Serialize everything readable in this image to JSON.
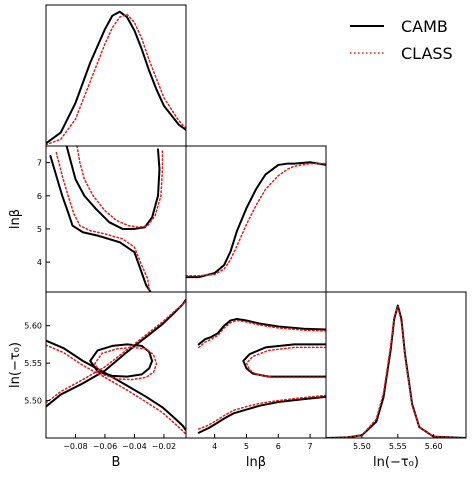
{
  "chart_data": {
    "type": "line",
    "colors": {
      "CAMB": "#000000",
      "CLASS": "#e31a1c"
    },
    "legend": {
      "placement": "top-right",
      "entries": [
        {
          "label": "CAMB",
          "color": "#000000",
          "style": "solid"
        },
        {
          "label": "CLASS",
          "color": "#e31a1c",
          "style": "dotted"
        }
      ]
    },
    "axis_labels": {
      "B": "B",
      "lnbeta": "lnβ",
      "lntau": "ln(−τ₀)"
    },
    "ranges": {
      "B": [
        -0.1,
        -0.005
      ],
      "lnbeta": [
        3.1,
        7.5
      ],
      "lntau": [
        5.45,
        5.645
      ]
    },
    "ticks": {
      "B": [
        {
          "v": -0.08,
          "label": "−0.08"
        },
        {
          "v": -0.06,
          "label": "−0.06"
        },
        {
          "v": -0.04,
          "label": "−0.04"
        },
        {
          "v": -0.02,
          "label": "−0.02"
        }
      ],
      "lnbeta": [
        {
          "v": 4,
          "label": "4"
        },
        {
          "v": 5,
          "label": "5"
        },
        {
          "v": 6,
          "label": "6"
        },
        {
          "v": 7,
          "label": "7"
        }
      ],
      "lnbeta_left": [
        {
          "v": 4,
          "label": "4"
        },
        {
          "v": 5,
          "label": "5"
        },
        {
          "v": 6,
          "label": "6"
        },
        {
          "v": 7,
          "label": "7"
        }
      ],
      "lntau": [
        {
          "v": 5.5,
          "label": "5.50"
        },
        {
          "v": 5.55,
          "label": "5.55"
        },
        {
          "v": 5.6,
          "label": "5.60"
        }
      ],
      "lntau_left": [
        {
          "v": 5.5,
          "label": "5.50"
        },
        {
          "v": 5.55,
          "label": "5.55"
        },
        {
          "v": 5.6,
          "label": "5.60"
        }
      ]
    },
    "panels": {
      "B_marginal": {
        "series": [
          {
            "name": "CAMB",
            "x": [
              -0.1,
              -0.09,
              -0.08,
              -0.07,
              -0.06,
              -0.055,
              -0.05,
              -0.045,
              -0.04,
              -0.035,
              -0.03,
              -0.025,
              -0.02,
              -0.01,
              -0.005
            ],
            "y": [
              0.02,
              0.1,
              0.32,
              0.62,
              0.87,
              0.97,
              1.0,
              0.96,
              0.86,
              0.72,
              0.56,
              0.42,
              0.3,
              0.16,
              0.12
            ]
          },
          {
            "name": "CLASS",
            "x": [
              -0.1,
              -0.09,
              -0.08,
              -0.07,
              -0.06,
              -0.055,
              -0.05,
              -0.045,
              -0.04,
              -0.035,
              -0.03,
              -0.025,
              -0.02,
              -0.01,
              -0.005
            ],
            "y": [
              0.01,
              0.05,
              0.2,
              0.48,
              0.76,
              0.88,
              0.96,
              0.98,
              0.92,
              0.8,
              0.64,
              0.5,
              0.36,
              0.19,
              0.13
            ]
          }
        ]
      },
      "lnbeta_marginal": {
        "series": [
          {
            "name": "CAMB",
            "x": [
              3.1,
              3.5,
              4.0,
              4.3,
              4.5,
              4.7,
              5.0,
              5.3,
              5.6,
              6.0,
              6.3,
              6.5,
              7.0,
              7.5
            ],
            "y": [
              0.11,
              0.11,
              0.14,
              0.2,
              0.3,
              0.45,
              0.62,
              0.76,
              0.87,
              0.94,
              0.95,
              0.95,
              0.96,
              0.94
            ]
          },
          {
            "name": "CLASS",
            "x": [
              3.1,
              3.5,
              4.0,
              4.3,
              4.5,
              4.7,
              5.0,
              5.3,
              5.6,
              6.0,
              6.3,
              6.5,
              7.0,
              7.5
            ],
            "y": [
              0.12,
              0.12,
              0.13,
              0.17,
              0.24,
              0.34,
              0.5,
              0.64,
              0.76,
              0.86,
              0.91,
              0.93,
              0.95,
              0.95
            ]
          }
        ]
      },
      "lntau_marginal": {
        "series": [
          {
            "name": "CAMB",
            "x": [
              5.45,
              5.48,
              5.5,
              5.52,
              5.53,
              5.54,
              5.545,
              5.55,
              5.555,
              5.56,
              5.57,
              5.58,
              5.6,
              5.645
            ],
            "y": [
              0.0,
              0.005,
              0.02,
              0.12,
              0.3,
              0.65,
              0.88,
              0.98,
              0.88,
              0.62,
              0.25,
              0.08,
              0.01,
              0.0
            ]
          },
          {
            "name": "CLASS",
            "x": [
              5.45,
              5.48,
              5.5,
              5.52,
              5.53,
              5.54,
              5.545,
              5.55,
              5.555,
              5.56,
              5.57,
              5.58,
              5.6,
              5.645
            ],
            "y": [
              0.0,
              0.005,
              0.02,
              0.14,
              0.33,
              0.68,
              0.9,
              0.97,
              0.86,
              0.6,
              0.24,
              0.08,
              0.01,
              0.0
            ]
          }
        ]
      },
      "B_lnbeta_contours": {
        "series": [
          {
            "name": "CAMB",
            "x": [
              -0.097,
              -0.093,
              -0.089,
              -0.085,
              -0.082,
              -0.075,
              -0.065,
              -0.05,
              -0.04,
              -0.036,
              -0.032,
              -0.029,
              -0.028
            ],
            "y": [
              7.2,
              6.6,
              6.0,
              5.5,
              5.1,
              4.9,
              4.8,
              4.6,
              4.3,
              3.8,
              3.3,
              3.1,
              3.05
            ]
          },
          {
            "name": "CAMB",
            "x": [
              -0.086,
              -0.083,
              -0.08,
              -0.074,
              -0.066,
              -0.057,
              -0.048,
              -0.04,
              -0.033,
              -0.028,
              -0.024,
              -0.023,
              -0.024
            ],
            "y": [
              7.5,
              7.0,
              6.5,
              6.0,
              5.6,
              5.2,
              5.0,
              5.0,
              5.05,
              5.35,
              6.0,
              6.8,
              7.4
            ]
          },
          {
            "name": "CLASS",
            "x": [
              -0.093,
              -0.089,
              -0.085,
              -0.081,
              -0.077,
              -0.07,
              -0.06,
              -0.048,
              -0.04,
              -0.035,
              -0.031,
              -0.03,
              -0.03
            ],
            "y": [
              7.3,
              6.6,
              6.0,
              5.45,
              5.1,
              4.95,
              4.85,
              4.7,
              4.45,
              3.9,
              3.5,
              3.2,
              3.05
            ]
          },
          {
            "name": "CLASS",
            "x": [
              -0.079,
              -0.077,
              -0.074,
              -0.068,
              -0.06,
              -0.052,
              -0.044,
              -0.037,
              -0.031,
              -0.026,
              -0.022,
              -0.021,
              -0.021
            ],
            "y": [
              7.5,
              7.0,
              6.5,
              6.0,
              5.55,
              5.25,
              5.1,
              5.05,
              5.1,
              5.4,
              6.0,
              6.8,
              7.4
            ]
          }
        ]
      },
      "B_lntau_contours": {
        "series": [
          {
            "name": "CAMB",
            "closed": false,
            "x": [
              -0.1,
              -0.09,
              -0.075,
              -0.06,
              -0.045,
              -0.032,
              -0.021,
              -0.013,
              -0.007,
              -0.005
            ],
            "y": [
              5.492,
              5.508,
              5.523,
              5.54,
              5.565,
              5.585,
              5.602,
              5.617,
              5.629,
              5.635
            ]
          },
          {
            "name": "CAMB",
            "closed": false,
            "x": [
              -0.1,
              -0.088,
              -0.075,
              -0.06,
              -0.045,
              -0.032,
              -0.021,
              -0.013,
              -0.007,
              -0.005
            ],
            "y": [
              5.58,
              5.57,
              5.553,
              5.537,
              5.52,
              5.505,
              5.491,
              5.477,
              5.466,
              5.46
            ]
          },
          {
            "name": "CAMB",
            "closed": true,
            "x": [
              -0.07,
              -0.065,
              -0.055,
              -0.045,
              -0.035,
              -0.03,
              -0.028,
              -0.03,
              -0.035,
              -0.045,
              -0.055,
              -0.065,
              -0.07
            ],
            "y": [
              5.553,
              5.567,
              5.573,
              5.575,
              5.573,
              5.565,
              5.553,
              5.543,
              5.535,
              5.532,
              5.533,
              5.539,
              5.553
            ]
          },
          {
            "name": "CLASS",
            "closed": false,
            "x": [
              -0.1,
              -0.09,
              -0.075,
              -0.06,
              -0.045,
              -0.032,
              -0.021,
              -0.013,
              -0.007,
              -0.005
            ],
            "y": [
              5.497,
              5.512,
              5.528,
              5.545,
              5.568,
              5.588,
              5.605,
              5.619,
              5.629,
              5.633
            ]
          },
          {
            "name": "CLASS",
            "closed": false,
            "x": [
              -0.1,
              -0.088,
              -0.075,
              -0.06,
              -0.045,
              -0.032,
              -0.021,
              -0.013,
              -0.007,
              -0.005
            ],
            "y": [
              5.574,
              5.564,
              5.547,
              5.531,
              5.514,
              5.498,
              5.484,
              5.47,
              5.459,
              5.455
            ]
          },
          {
            "name": "CLASS",
            "closed": true,
            "x": [
              -0.067,
              -0.062,
              -0.052,
              -0.042,
              -0.032,
              -0.027,
              -0.025,
              -0.027,
              -0.032,
              -0.042,
              -0.052,
              -0.062,
              -0.067
            ],
            "y": [
              5.549,
              5.563,
              5.569,
              5.571,
              5.569,
              5.561,
              5.549,
              5.538,
              5.531,
              5.528,
              5.529,
              5.535,
              5.549
            ]
          }
        ]
      },
      "lnbeta_lntau_contours": {
        "series": [
          {
            "name": "CAMB",
            "closed": false,
            "x": [
              3.5,
              3.7,
              3.9,
              4.1,
              4.3,
              4.5,
              4.7,
              5.0,
              5.4,
              6.0,
              6.8,
              7.5
            ],
            "y": [
              5.575,
              5.582,
              5.585,
              5.59,
              5.6,
              5.607,
              5.609,
              5.607,
              5.603,
              5.599,
              5.596,
              5.595
            ]
          },
          {
            "name": "CAMB",
            "closed": false,
            "x": [
              3.5,
              3.8,
              4.0,
              4.3,
              4.6,
              5.0,
              5.4,
              6.0,
              6.8,
              7.5
            ],
            "y": [
              5.457,
              5.463,
              5.468,
              5.476,
              5.483,
              5.488,
              5.493,
              5.498,
              5.502,
              5.505
            ]
          },
          {
            "name": "CAMB",
            "closed": false,
            "x": [
              7.5,
              6.5,
              5.6,
              5.1,
              4.9,
              5.0,
              5.2,
              5.7,
              6.5,
              7.5
            ],
            "y": [
              5.575,
              5.575,
              5.571,
              5.562,
              5.553,
              5.543,
              5.536,
              5.532,
              5.532,
              5.532
            ]
          },
          {
            "name": "CLASS",
            "closed": false,
            "x": [
              3.5,
              3.7,
              3.9,
              4.1,
              4.3,
              4.5,
              4.7,
              5.0,
              5.4,
              6.0,
              6.8,
              7.5
            ],
            "y": [
              5.571,
              5.578,
              5.582,
              5.587,
              5.597,
              5.604,
              5.607,
              5.605,
              5.601,
              5.597,
              5.594,
              5.593
            ]
          },
          {
            "name": "CLASS",
            "closed": false,
            "x": [
              3.5,
              3.8,
              4.0,
              4.3,
              4.6,
              5.0,
              5.4,
              6.0,
              6.8,
              7.5
            ],
            "y": [
              5.462,
              5.467,
              5.472,
              5.48,
              5.487,
              5.492,
              5.496,
              5.5,
              5.504,
              5.507
            ]
          },
          {
            "name": "CLASS",
            "closed": false,
            "x": [
              7.5,
              6.5,
              5.7,
              5.2,
              5.0,
              5.1,
              5.3,
              5.8,
              6.6,
              7.5
            ],
            "y": [
              5.571,
              5.571,
              5.567,
              5.559,
              5.55,
              5.541,
              5.535,
              5.531,
              5.531,
              5.531
            ]
          }
        ]
      }
    }
  }
}
